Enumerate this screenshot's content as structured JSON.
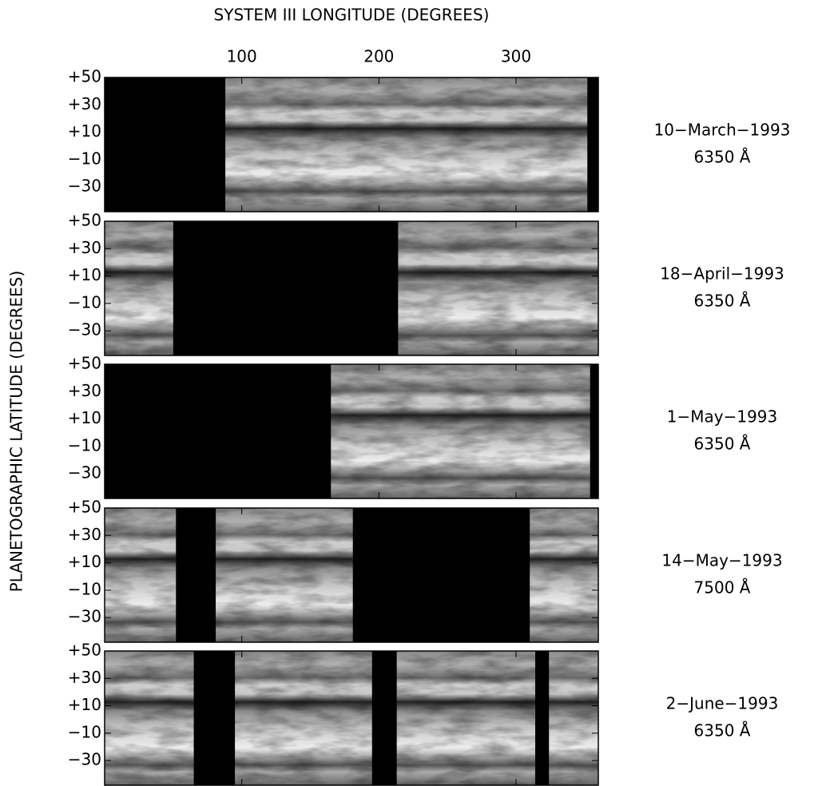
{
  "chart_data": {
    "type": "image-map",
    "xlabel": "SYSTEM III LONGITUDE (DEGREES)",
    "ylabel": "PLANETOGRAPHIC LATITUDE (DEGREES)",
    "xlim": [
      0,
      360
    ],
    "xticks": [
      100,
      200,
      300
    ],
    "ylim": [
      -48,
      50
    ],
    "yticks": [
      {
        "value": 50,
        "label": "+50"
      },
      {
        "value": 30,
        "label": "+30"
      },
      {
        "value": 10,
        "label": "+10"
      },
      {
        "value": -10,
        "label": "−10"
      },
      {
        "value": -30,
        "label": "−30"
      }
    ],
    "panels": [
      {
        "date": "10−March−1993",
        "wavelength": "6350 Å",
        "no_data": [
          [
            0,
            88
          ],
          [
            352,
            360
          ]
        ]
      },
      {
        "date": "18−April−1993",
        "wavelength": "6350 Å",
        "no_data": [
          [
            50,
            214
          ]
        ]
      },
      {
        "date": "1−May−1993",
        "wavelength": "6350 Å",
        "no_data": [
          [
            0,
            165
          ],
          [
            354,
            360
          ]
        ]
      },
      {
        "date": "14−May−1993",
        "wavelength": "7500 Å",
        "no_data": [
          [
            52,
            81
          ],
          [
            181,
            310
          ]
        ]
      },
      {
        "date": "2−June−1993",
        "wavelength": "6350 Å",
        "no_data": [
          [
            65,
            95
          ],
          [
            195,
            213
          ],
          [
            314,
            324
          ]
        ]
      }
    ]
  }
}
